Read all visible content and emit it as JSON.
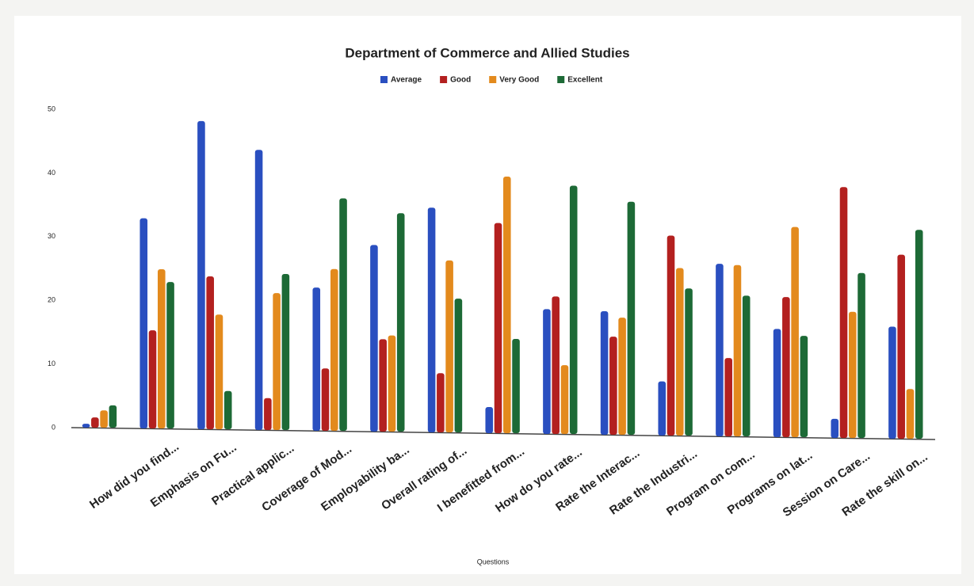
{
  "chart_data": {
    "type": "bar",
    "title": "Department of Commerce and Allied Studies",
    "x_label": "Questions",
    "categories": [
      null,
      "How did you find...",
      "Emphasis on Fu...",
      "Practical applic...",
      "Coverage of Mod...",
      "Employability ba...",
      "Overall rating of...",
      "I benefitted from...",
      "How do you rate...",
      "Rate the Interac...",
      "Rate the Industri...",
      "Program on com...",
      "Programs on lat...",
      "Session on Care...",
      "Rate the skill on..."
    ],
    "series": [
      {
        "name": "Average",
        "color": "#2a4fc0",
        "values": [
          0.6,
          33,
          48.4,
          44,
          22.5,
          29.3,
          35.3,
          4.1,
          19.6,
          19.4,
          8.5,
          27.1,
          17,
          3,
          17.6
        ]
      },
      {
        "name": "Good",
        "color": "#b3201f",
        "values": [
          1.6,
          15.4,
          24,
          5,
          9.8,
          14.5,
          9.3,
          33,
          21.6,
          15.4,
          31.4,
          12.3,
          22,
          39.4,
          28.9
        ]
      },
      {
        "name": "Very Good",
        "color": "#e38a1d",
        "values": [
          2.7,
          25,
          18,
          21.5,
          25.4,
          15.1,
          27,
          40.3,
          10.8,
          18.4,
          26.3,
          26.9,
          33,
          19.8,
          7.8
        ]
      },
      {
        "name": "Excellent",
        "color": "#1d6a36",
        "values": [
          3.5,
          23,
          6,
          24.5,
          36.5,
          34.3,
          21,
          14.8,
          39,
          36.6,
          23.1,
          22.1,
          15.9,
          25.9,
          32.8
        ]
      }
    ],
    "ylim": [
      0,
      50
    ],
    "yticks": [
      0,
      10,
      20,
      30,
      40,
      50
    ],
    "grid": false,
    "legend": "top"
  }
}
